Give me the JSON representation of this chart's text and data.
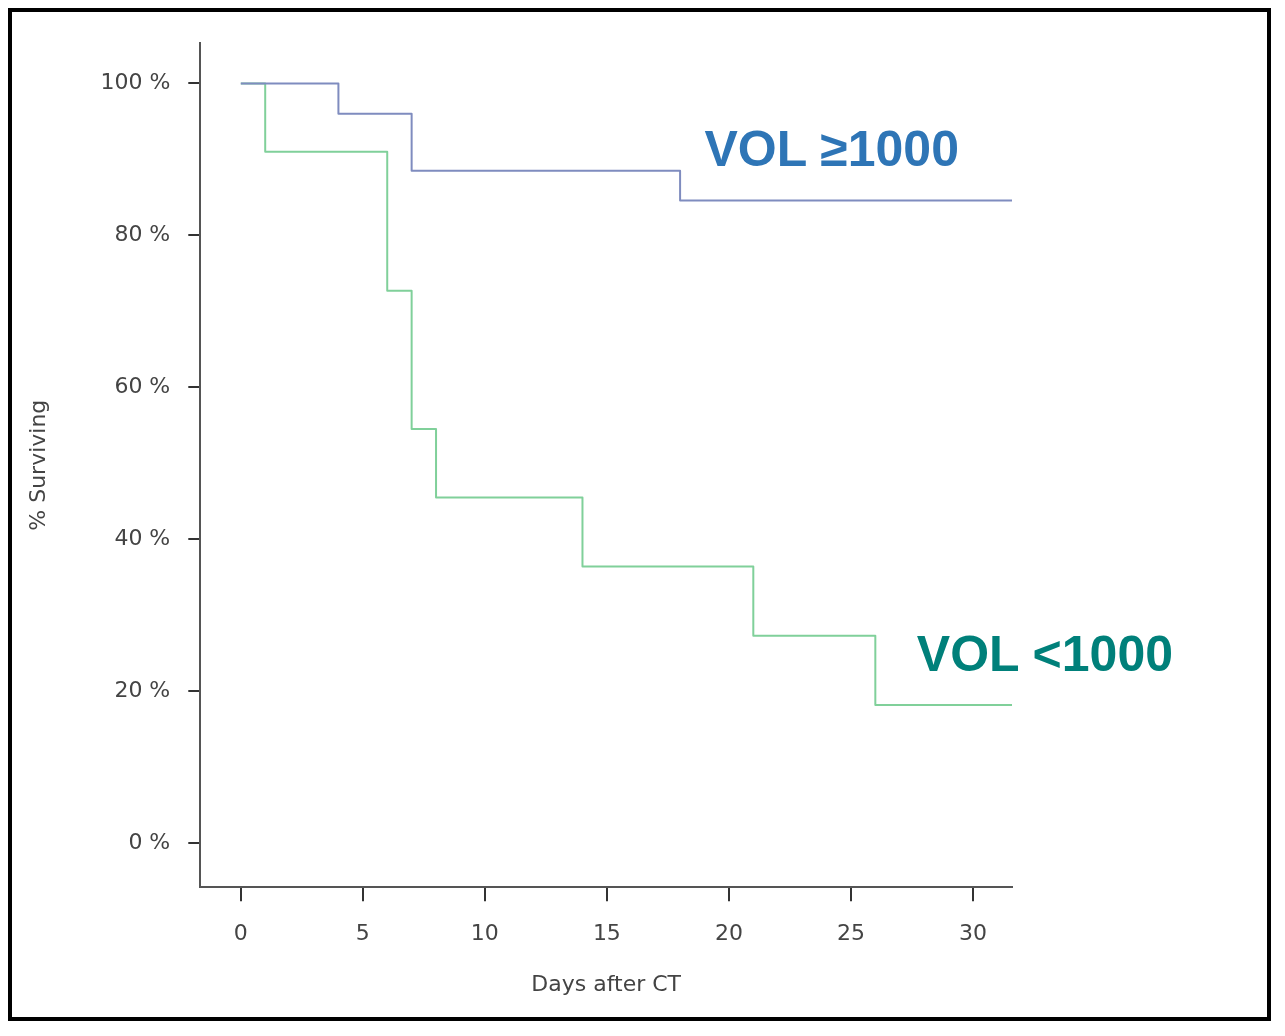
{
  "chart_data": {
    "type": "step",
    "xlabel": "Days after CT",
    "ylabel": "% Surviving",
    "xlim": [
      -1.66,
      31.6
    ],
    "xticks": [
      0,
      5,
      10,
      15,
      20,
      25,
      30
    ],
    "ylim": [
      -5.8,
      105.3
    ],
    "yticks": [
      {
        "value": 0,
        "label": "0 %"
      },
      {
        "value": 20,
        "label": "20 %"
      },
      {
        "value": 40,
        "label": "40 %"
      },
      {
        "value": 60,
        "label": "60 %"
      },
      {
        "value": 80,
        "label": "80 %"
      },
      {
        "value": 100,
        "label": "100 %"
      }
    ],
    "grid": false,
    "legend": false,
    "marker": "none",
    "line_style": "solid",
    "series": [
      {
        "name": "VOL ≥1000",
        "color": "#7f8cbf",
        "x": [
          0,
          4,
          7,
          18,
          31.6
        ],
        "values": [
          100,
          96,
          88.5,
          84.6,
          84.6
        ]
      },
      {
        "name": "VOL <1000",
        "color": "#80d09a",
        "x": [
          0,
          1,
          6,
          7,
          8,
          14,
          21,
          26,
          31.6
        ],
        "values": [
          100,
          91,
          72.7,
          54.5,
          45.5,
          36.4,
          27.3,
          18.2,
          18.2
        ]
      }
    ]
  }
}
